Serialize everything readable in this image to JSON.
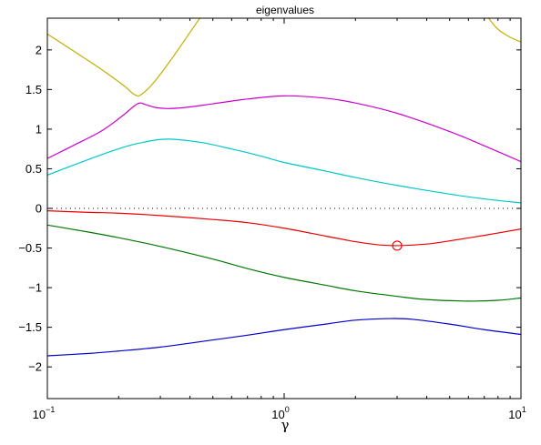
{
  "chart_data": {
    "type": "line",
    "title": "eigenvalues",
    "xlabel": "γ",
    "ylabel": "",
    "xscale": "log",
    "xlim": [
      0.1,
      10
    ],
    "ylim": [
      -2.4,
      2.4
    ],
    "x_ticks": [
      {
        "value": 0.1,
        "base": "10",
        "exp": "−1"
      },
      {
        "value": 1,
        "base": "10",
        "exp": "0"
      },
      {
        "value": 10,
        "base": "10",
        "exp": "1"
      }
    ],
    "y_ticks": [
      {
        "value": 2,
        "label": "2"
      },
      {
        "value": 1.5,
        "label": "1.5"
      },
      {
        "value": 1,
        "label": "1"
      },
      {
        "value": 0.5,
        "label": "0.5"
      },
      {
        "value": 0,
        "label": "0"
      },
      {
        "value": -0.5,
        "label": "−0.5"
      },
      {
        "value": -1,
        "label": "−1"
      },
      {
        "value": -1.5,
        "label": "−1.5"
      },
      {
        "value": -2,
        "label": "−2"
      }
    ],
    "grid": false,
    "series": [
      {
        "color": "#0000cc",
        "points": [
          [
            0.1,
            -1.86
          ],
          [
            0.15,
            -1.83
          ],
          [
            0.2,
            -1.8
          ],
          [
            0.3,
            -1.75
          ],
          [
            0.5,
            -1.66
          ],
          [
            0.7,
            -1.6
          ],
          [
            1.0,
            -1.53
          ],
          [
            1.5,
            -1.46
          ],
          [
            2.0,
            -1.41
          ],
          [
            2.8,
            -1.39
          ],
          [
            3.5,
            -1.4
          ],
          [
            5.0,
            -1.46
          ],
          [
            7.0,
            -1.53
          ],
          [
            10.0,
            -1.59
          ]
        ]
      },
      {
        "color": "#007700",
        "points": [
          [
            0.1,
            -0.21
          ],
          [
            0.15,
            -0.3
          ],
          [
            0.2,
            -0.37
          ],
          [
            0.3,
            -0.48
          ],
          [
            0.5,
            -0.64
          ],
          [
            0.7,
            -0.76
          ],
          [
            1.0,
            -0.87
          ],
          [
            1.5,
            -0.97
          ],
          [
            2.0,
            -1.04
          ],
          [
            3.0,
            -1.11
          ],
          [
            4.0,
            -1.15
          ],
          [
            6.0,
            -1.17
          ],
          [
            8.0,
            -1.16
          ],
          [
            10.0,
            -1.13
          ]
        ]
      },
      {
        "color": "#ee0000",
        "points": [
          [
            0.1,
            -0.03
          ],
          [
            0.15,
            -0.05
          ],
          [
            0.2,
            -0.06
          ],
          [
            0.3,
            -0.09
          ],
          [
            0.5,
            -0.14
          ],
          [
            0.7,
            -0.18
          ],
          [
            1.0,
            -0.25
          ],
          [
            1.5,
            -0.35
          ],
          [
            2.0,
            -0.42
          ],
          [
            2.5,
            -0.46
          ],
          [
            3.0,
            -0.47
          ],
          [
            4.0,
            -0.45
          ],
          [
            5.0,
            -0.41
          ],
          [
            7.0,
            -0.34
          ],
          [
            10.0,
            -0.26
          ]
        ]
      },
      {
        "color": "#00c8c8",
        "points": [
          [
            0.1,
            0.42
          ],
          [
            0.13,
            0.55
          ],
          [
            0.17,
            0.68
          ],
          [
            0.22,
            0.79
          ],
          [
            0.26,
            0.84
          ],
          [
            0.3,
            0.87
          ],
          [
            0.35,
            0.87
          ],
          [
            0.45,
            0.83
          ],
          [
            0.6,
            0.75
          ],
          [
            0.8,
            0.66
          ],
          [
            1.0,
            0.58
          ],
          [
            1.5,
            0.47
          ],
          [
            2.0,
            0.39
          ],
          [
            3.0,
            0.29
          ],
          [
            5.0,
            0.18
          ],
          [
            7.0,
            0.12
          ],
          [
            10.0,
            0.07
          ]
        ]
      },
      {
        "color": "#cc00cc",
        "points": [
          [
            0.1,
            0.63
          ],
          [
            0.13,
            0.8
          ],
          [
            0.17,
            0.98
          ],
          [
            0.21,
            1.18
          ],
          [
            0.23,
            1.28
          ],
          [
            0.245,
            1.33
          ],
          [
            0.26,
            1.31
          ],
          [
            0.29,
            1.27
          ],
          [
            0.33,
            1.26
          ],
          [
            0.4,
            1.28
          ],
          [
            0.5,
            1.32
          ],
          [
            0.7,
            1.38
          ],
          [
            1.0,
            1.42
          ],
          [
            1.5,
            1.39
          ],
          [
            2.0,
            1.33
          ],
          [
            3.0,
            1.2
          ],
          [
            5.0,
            0.97
          ],
          [
            7.0,
            0.79
          ],
          [
            10.0,
            0.59
          ]
        ]
      },
      {
        "color": "#c0b000",
        "points": [
          [
            0.1,
            2.2
          ],
          [
            0.13,
            1.98
          ],
          [
            0.17,
            1.75
          ],
          [
            0.21,
            1.55
          ],
          [
            0.235,
            1.43
          ],
          [
            0.25,
            1.44
          ],
          [
            0.28,
            1.58
          ],
          [
            0.33,
            1.86
          ],
          [
            0.4,
            2.22
          ],
          [
            0.44,
            2.4
          ]
        ]
      },
      {
        "color": "#c0b000",
        "points": [
          [
            7.3,
            2.4
          ],
          [
            8.0,
            2.26
          ],
          [
            9.0,
            2.16
          ],
          [
            10.0,
            2.1
          ]
        ]
      }
    ],
    "reference_line": {
      "y": 0,
      "style": "dotted",
      "color": "#000000"
    },
    "marker": {
      "x": 3.0,
      "y": -0.47,
      "shape": "circle",
      "color": "#ee0000"
    }
  }
}
